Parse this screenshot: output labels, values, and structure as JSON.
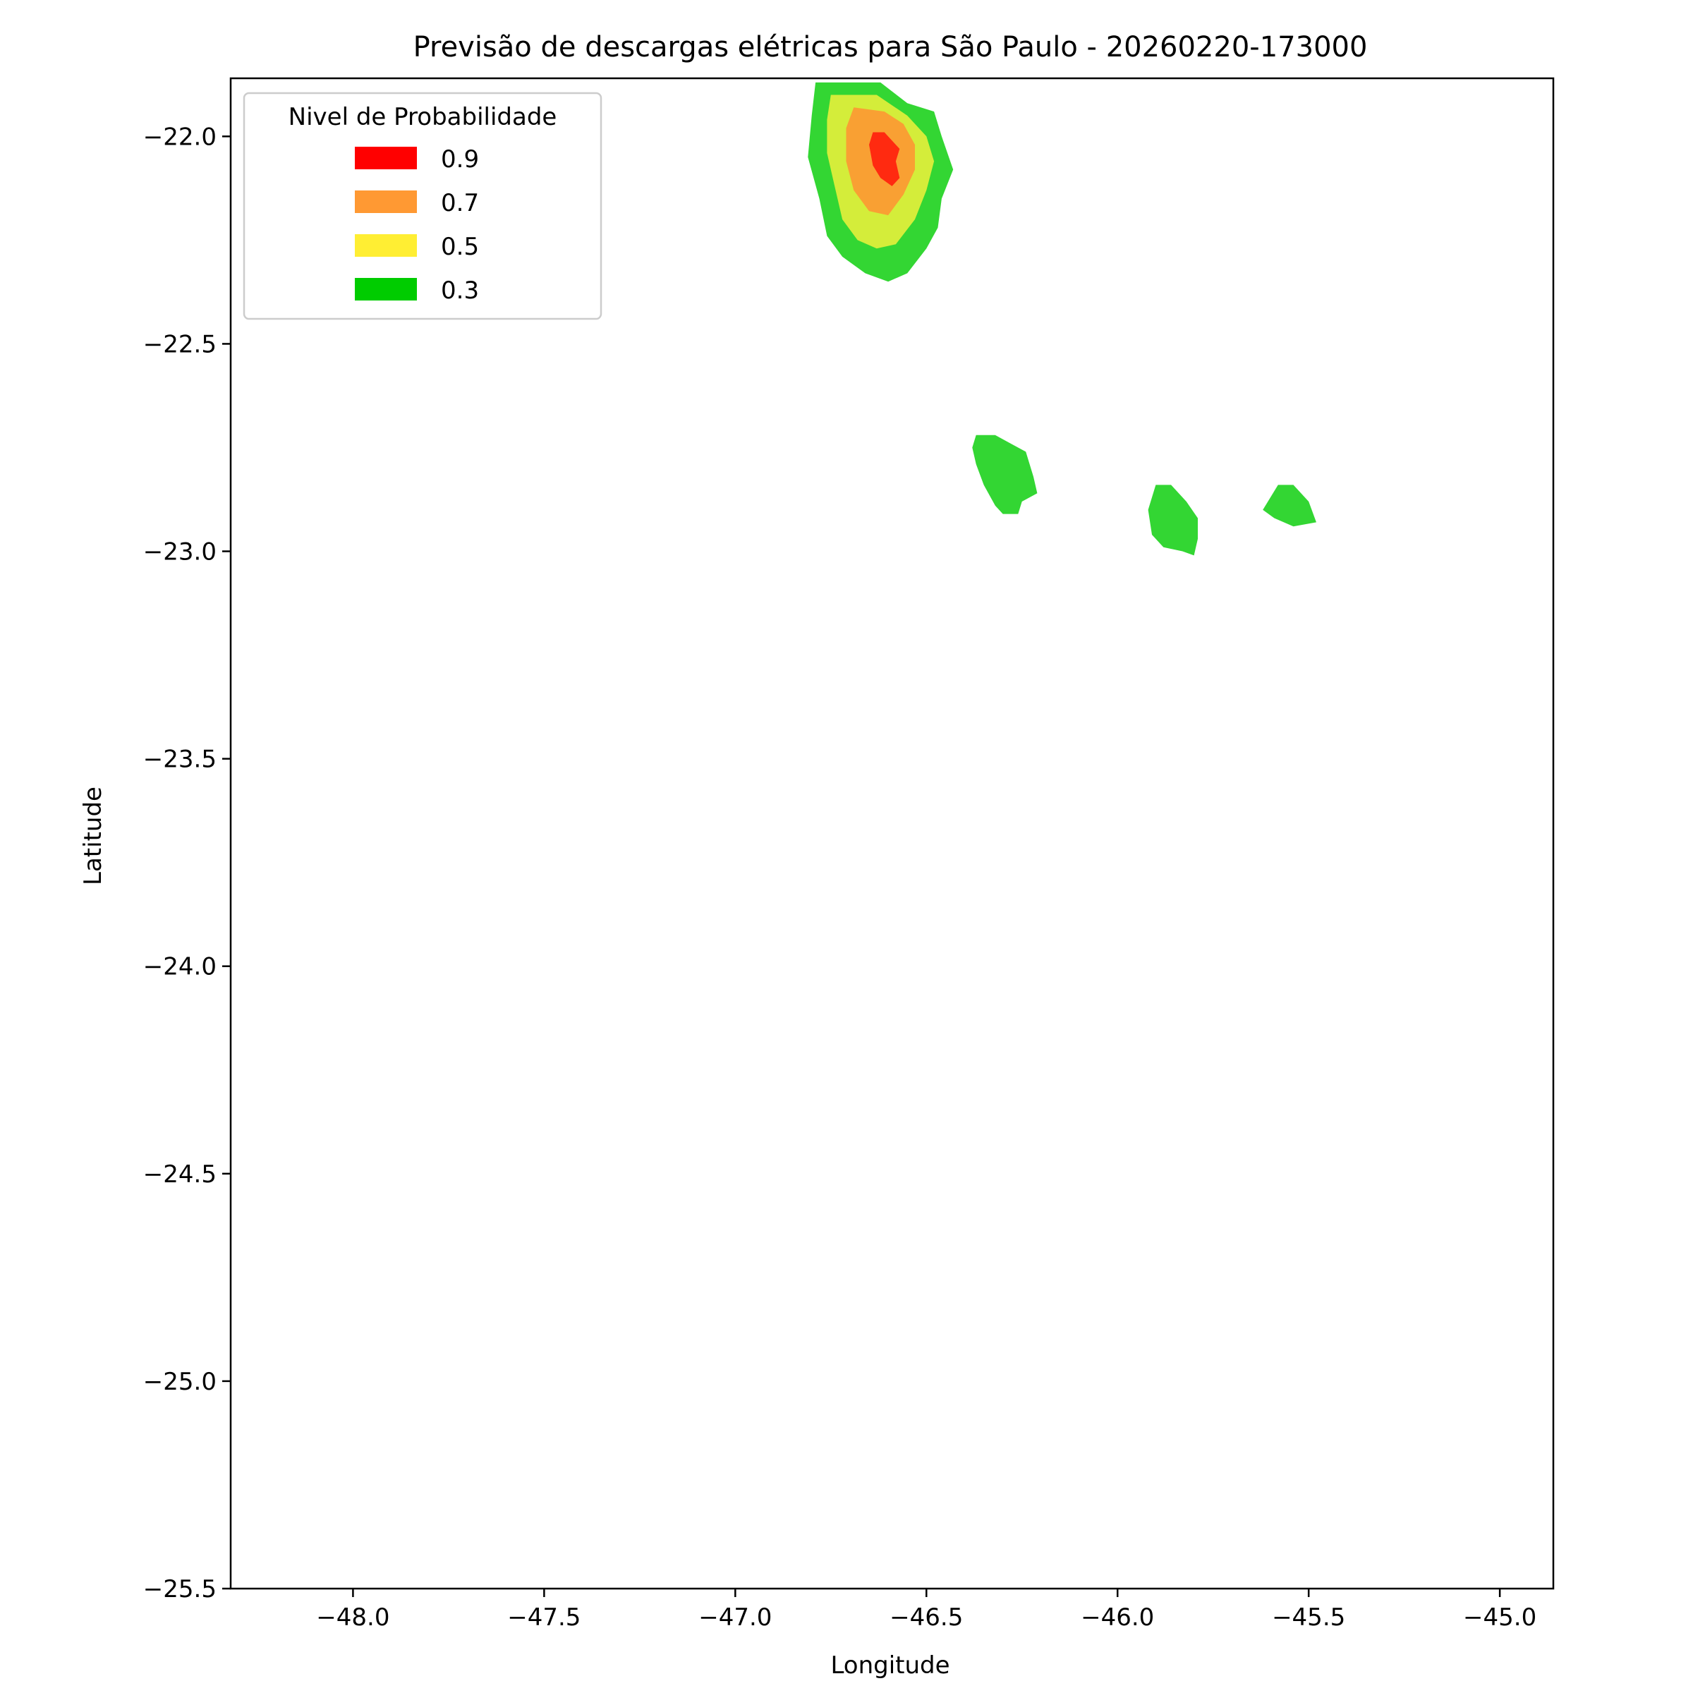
{
  "chart_data": {
    "type": "contour-map",
    "title": "Previsão de descargas elétricas para São Paulo - 20260220-173000",
    "xlabel": "Longitude",
    "ylabel": "Latitude",
    "xlim": [
      -48.32,
      -44.86
    ],
    "ylim": [
      -25.5,
      -21.86
    ],
    "xticks": [
      -48.0,
      -47.5,
      -47.0,
      -46.5,
      -46.0,
      -45.5,
      -45.0
    ],
    "xtick_labels": [
      "−48.0",
      "−47.5",
      "−47.0",
      "−46.5",
      "−46.0",
      "−45.5",
      "−45.0"
    ],
    "yticks": [
      -22.0,
      -22.5,
      -23.0,
      -23.5,
      -24.0,
      -24.5,
      -25.0,
      -25.5
    ],
    "ytick_labels": [
      "−22.0",
      "−22.5",
      "−23.0",
      "−23.5",
      "−24.0",
      "−24.5",
      "−25.0",
      "−25.5"
    ],
    "grid": false,
    "legend": {
      "title": "Nivel de Probabilidade",
      "placement": "top-left",
      "entries": [
        {
          "label": "0.9",
          "color": "#ff0000"
        },
        {
          "label": "0.7",
          "color": "#ff9933"
        },
        {
          "label": "0.5",
          "color": "#ffee33"
        },
        {
          "label": "0.3",
          "color": "#00cc00"
        }
      ]
    },
    "regions": [
      {
        "name": "cell-main",
        "levels": [
          {
            "level": "0.3",
            "color": "#33d633",
            "polygon": [
              [
                -46.79,
                -21.87
              ],
              [
                -46.62,
                -21.87
              ],
              [
                -46.55,
                -21.92
              ],
              [
                -46.48,
                -21.94
              ],
              [
                -46.46,
                -22.0
              ],
              [
                -46.43,
                -22.08
              ],
              [
                -46.46,
                -22.15
              ],
              [
                -46.47,
                -22.22
              ],
              [
                -46.5,
                -22.27
              ],
              [
                -46.55,
                -22.33
              ],
              [
                -46.6,
                -22.35
              ],
              [
                -46.66,
                -22.33
              ],
              [
                -46.72,
                -22.29
              ],
              [
                -46.76,
                -22.24
              ],
              [
                -46.78,
                -22.15
              ],
              [
                -46.81,
                -22.05
              ],
              [
                -46.8,
                -21.95
              ]
            ]
          },
          {
            "level": "0.5",
            "color": "#d4ed3a",
            "polygon": [
              [
                -46.75,
                -21.9
              ],
              [
                -46.63,
                -21.9
              ],
              [
                -46.55,
                -21.95
              ],
              [
                -46.5,
                -22.0
              ],
              [
                -46.48,
                -22.06
              ],
              [
                -46.5,
                -22.13
              ],
              [
                -46.53,
                -22.2
              ],
              [
                -46.58,
                -22.26
              ],
              [
                -46.63,
                -22.27
              ],
              [
                -46.68,
                -22.25
              ],
              [
                -46.72,
                -22.2
              ],
              [
                -46.74,
                -22.12
              ],
              [
                -46.76,
                -22.04
              ],
              [
                -46.76,
                -21.96
              ]
            ]
          },
          {
            "level": "0.7",
            "color": "#f9a033",
            "polygon": [
              [
                -46.69,
                -21.93
              ],
              [
                -46.61,
                -21.94
              ],
              [
                -46.56,
                -21.97
              ],
              [
                -46.53,
                -22.02
              ],
              [
                -46.53,
                -22.08
              ],
              [
                -46.56,
                -22.14
              ],
              [
                -46.6,
                -22.19
              ],
              [
                -46.65,
                -22.18
              ],
              [
                -46.69,
                -22.13
              ],
              [
                -46.71,
                -22.06
              ],
              [
                -46.71,
                -21.98
              ]
            ]
          },
          {
            "level": "0.9",
            "color": "#ff2a10",
            "polygon": [
              [
                -46.64,
                -21.99
              ],
              [
                -46.61,
                -21.99
              ],
              [
                -46.57,
                -22.03
              ],
              [
                -46.58,
                -22.06
              ],
              [
                -46.57,
                -22.1
              ],
              [
                -46.59,
                -22.12
              ],
              [
                -46.62,
                -22.1
              ],
              [
                -46.64,
                -22.07
              ],
              [
                -46.65,
                -22.02
              ]
            ]
          }
        ]
      },
      {
        "name": "cell-2",
        "levels": [
          {
            "level": "0.3",
            "color": "#33d633",
            "polygon": [
              [
                -46.37,
                -22.72
              ],
              [
                -46.32,
                -22.72
              ],
              [
                -46.28,
                -22.74
              ],
              [
                -46.24,
                -22.76
              ],
              [
                -46.22,
                -22.82
              ],
              [
                -46.21,
                -22.86
              ],
              [
                -46.25,
                -22.88
              ],
              [
                -46.26,
                -22.91
              ],
              [
                -46.3,
                -22.91
              ],
              [
                -46.32,
                -22.89
              ],
              [
                -46.35,
                -22.84
              ],
              [
                -46.37,
                -22.79
              ],
              [
                -46.38,
                -22.75
              ]
            ]
          }
        ]
      },
      {
        "name": "cell-3",
        "levels": [
          {
            "level": "0.3",
            "color": "#33d633",
            "polygon": [
              [
                -45.9,
                -22.84
              ],
              [
                -45.86,
                -22.84
              ],
              [
                -45.82,
                -22.88
              ],
              [
                -45.79,
                -22.92
              ],
              [
                -45.79,
                -22.97
              ],
              [
                -45.8,
                -23.01
              ],
              [
                -45.83,
                -23.0
              ],
              [
                -45.88,
                -22.99
              ],
              [
                -45.91,
                -22.96
              ],
              [
                -45.92,
                -22.9
              ]
            ]
          }
        ]
      },
      {
        "name": "cell-4",
        "levels": [
          {
            "level": "0.3",
            "color": "#33d633",
            "polygon": [
              [
                -45.58,
                -22.84
              ],
              [
                -45.54,
                -22.84
              ],
              [
                -45.5,
                -22.88
              ],
              [
                -45.48,
                -22.93
              ],
              [
                -45.54,
                -22.94
              ],
              [
                -45.59,
                -22.92
              ],
              [
                -45.62,
                -22.9
              ]
            ]
          }
        ]
      }
    ]
  }
}
